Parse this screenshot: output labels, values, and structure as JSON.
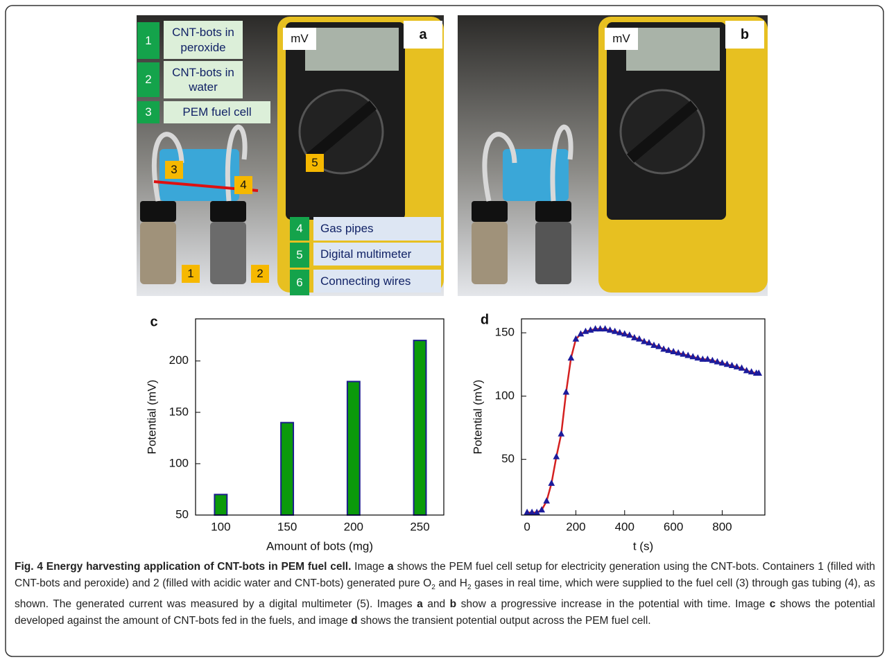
{
  "panel_labels": [
    "a",
    "b",
    "c",
    "d"
  ],
  "photo_a": {
    "meter_unit": "mV",
    "legend": [
      {
        "number": "1",
        "label": "CNT-bots in peroxide"
      },
      {
        "number": "2",
        "label": "CNT-bots in water"
      },
      {
        "number": "3",
        "label": "PEM fuel cell"
      },
      {
        "number": "4",
        "label": "Gas pipes"
      },
      {
        "number": "5",
        "label": "Digital multimeter"
      },
      {
        "number": "6",
        "label": "Connecting wires"
      }
    ],
    "markers": [
      "3",
      "4",
      "5",
      "1",
      "2"
    ]
  },
  "photo_b": {
    "meter_unit": "mV"
  },
  "chart_data": [
    {
      "type": "bar",
      "x_label": "Amount of bots (mg)",
      "y_label": "Potential (mV)",
      "x": [
        100,
        150,
        200,
        250
      ],
      "values": [
        70,
        140,
        180,
        220
      ],
      "color": "#0b9a0b",
      "edge_color": "#1c1c8c",
      "xlim": [
        81,
        268
      ],
      "ylim": [
        50,
        241
      ],
      "xticks": [
        100,
        150,
        200,
        250
      ],
      "yticks": [
        50,
        100,
        150,
        200
      ]
    },
    {
      "type": "line",
      "x_label": "t (s)",
      "y_label": "Potential (mV)",
      "x": [
        0,
        20,
        40,
        60,
        80,
        100,
        120,
        140,
        160,
        180,
        200,
        220,
        240,
        260,
        280,
        300,
        320,
        340,
        360,
        380,
        400,
        420,
        440,
        460,
        480,
        500,
        520,
        540,
        560,
        580,
        600,
        620,
        640,
        660,
        680,
        700,
        720,
        740,
        760,
        780,
        800,
        820,
        840,
        860,
        880,
        900,
        920,
        940,
        950
      ],
      "series": [
        {
          "color": "#d42020",
          "marker_color": "#1c1c9c",
          "values": [
            8,
            8,
            8,
            10,
            17,
            31,
            52,
            70,
            103,
            130,
            145,
            149,
            151,
            152,
            153,
            153,
            153,
            152,
            151,
            150,
            149,
            148,
            146,
            145,
            143,
            142,
            140,
            139,
            137,
            136,
            135,
            134,
            133,
            132,
            131,
            130,
            129,
            129,
            128,
            127,
            126,
            125,
            124,
            123,
            122,
            120,
            119,
            118,
            118
          ]
        }
      ],
      "xlim": [
        -23,
        975
      ],
      "ylim": [
        6,
        161
      ],
      "xticks": [
        0,
        200,
        400,
        600,
        800
      ],
      "yticks": [
        50,
        100,
        150
      ]
    }
  ],
  "caption": {
    "runs": [
      {
        "text": "Fig. 4 Energy harvesting application of CNT-bots in PEM fuel cell.",
        "style": "bold"
      },
      {
        "text": " Image ",
        "style": "plain"
      },
      {
        "text": "a",
        "style": "bold"
      },
      {
        "text": " shows the PEM fuel cell setup for electricity generation using the CNT-bots. Containers 1 (filled with CNT-bots and peroxide) and 2 (filled with acidic water and CNT-bots) generated pure O",
        "style": "plain"
      },
      {
        "text": "2",
        "style": "sub"
      },
      {
        "text": " and H",
        "style": "plain"
      },
      {
        "text": "2",
        "style": "sub"
      },
      {
        "text": " gases in real time, which were supplied to the fuel cell (3) through gas tubing (4), as shown. The generated current was measured by a digital multimeter (5). Images ",
        "style": "plain"
      },
      {
        "text": "a",
        "style": "bold"
      },
      {
        "text": " and ",
        "style": "plain"
      },
      {
        "text": "b",
        "style": "bold"
      },
      {
        "text": " show a progressive increase in the potential with time. Image ",
        "style": "plain"
      },
      {
        "text": "c",
        "style": "bold"
      },
      {
        "text": " shows the potential developed against the amount of CNT-bots fed in the fuels, and image ",
        "style": "plain"
      },
      {
        "text": "d",
        "style": "bold"
      },
      {
        "text": " shows the transient potential output across the PEM fuel cell.",
        "style": "plain"
      }
    ]
  }
}
